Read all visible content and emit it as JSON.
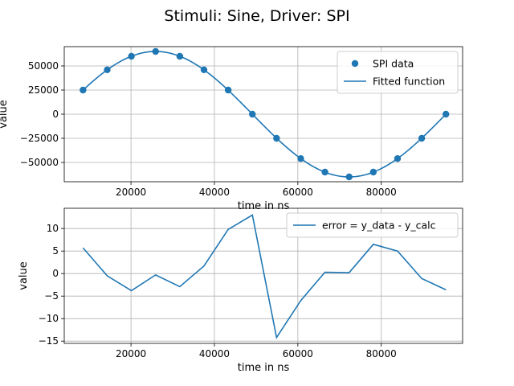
{
  "figure": {
    "title": "Stimuli: Sine, Driver: SPI"
  },
  "colors": {
    "series": "#1f77b4",
    "grid": "#b0b0b0",
    "axis": "#000000"
  },
  "chart_data": [
    {
      "type": "scatter",
      "xlabel": "time in ns",
      "ylabel": "value",
      "xlim": [
        4000,
        99500
      ],
      "ylim": [
        -70000,
        70000
      ],
      "x_ticks": [
        20000,
        40000,
        60000,
        80000
      ],
      "y_ticks": [
        50000,
        25000,
        0,
        -25000,
        -50000
      ],
      "grid": true,
      "legend_position": "upper right",
      "series": [
        {
          "name": "SPI data",
          "type": "scatter",
          "x": [
            8500,
            14300,
            20100,
            25900,
            31700,
            37500,
            43300,
            49100,
            54900,
            60700,
            66500,
            72300,
            78100,
            83900,
            89700,
            95500
          ],
          "y": [
            25000,
            46000,
            60000,
            65000,
            60000,
            46000,
            25000,
            0,
            -25000,
            -46000,
            -60000,
            -65000,
            -60000,
            -46000,
            -25000,
            0
          ]
        },
        {
          "name": "Fitted function",
          "type": "line",
          "function": {
            "kind": "sine",
            "amplitude": 65000,
            "period": 92800,
            "phase_x": 49100,
            "sign": -1,
            "x_start": 8500,
            "x_end": 95500
          }
        }
      ]
    },
    {
      "type": "line",
      "xlabel": "time in ns",
      "ylabel": "value",
      "xlim": [
        4000,
        99500
      ],
      "ylim": [
        -15.5,
        14.5
      ],
      "x_ticks": [
        20000,
        40000,
        60000,
        80000
      ],
      "y_ticks": [
        10,
        5,
        0,
        -5,
        -10,
        -15
      ],
      "grid": true,
      "legend_position": "upper right",
      "series": [
        {
          "name": "error = y_data - y_calc",
          "x": [
            8500,
            14300,
            20100,
            25900,
            31700,
            37500,
            43300,
            49100,
            54900,
            60700,
            66500,
            72300,
            78100,
            83900,
            89700,
            95500
          ],
          "y": [
            5.7,
            -0.5,
            -3.8,
            -0.3,
            -2.9,
            1.7,
            9.8,
            13.0,
            -14.2,
            -6.0,
            0.3,
            0.2,
            6.5,
            5.0,
            -1.1,
            -3.6
          ]
        }
      ]
    }
  ]
}
